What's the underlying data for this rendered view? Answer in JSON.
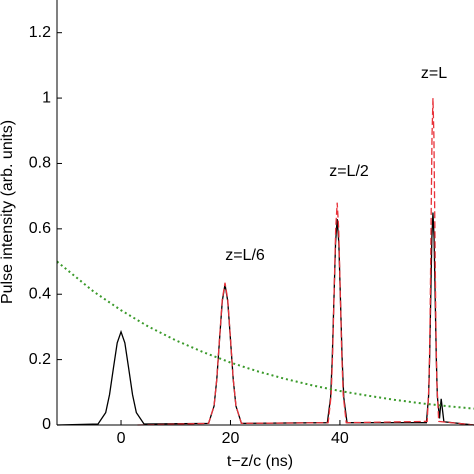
{
  "chart_data": {
    "type": "line",
    "xlabel": "t−z/c (ns)",
    "ylabel": "Pulse intensity (arb. units)",
    "xlim": [
      -11.7,
      64.5
    ],
    "ylim": [
      0,
      1.3
    ],
    "xticks": [
      0,
      20,
      40
    ],
    "yticks": [
      0,
      0.2,
      0.4,
      0.6,
      0.8,
      1,
      1.2
    ],
    "annotations": [
      "z=L/6",
      "z=L/2",
      "z=L"
    ],
    "series": [
      {
        "color": "#000000",
        "linestyle": "solid",
        "x": [
          -11.7,
          -4.2,
          -2.8,
          -2.1,
          -1.4,
          -0.7,
          0,
          0.7,
          1.4,
          2.1,
          2.8,
          4.2,
          16,
          17,
          17.5,
          18,
          18.5,
          19,
          19.5,
          20,
          20.5,
          21,
          22,
          37.7,
          38.3,
          38.6,
          38.9,
          39.2,
          39.5,
          39.8,
          40.1,
          40.4,
          40.7,
          41.3,
          55.8,
          56.2,
          56.4,
          56.6,
          56.8,
          57,
          57.2,
          57.4,
          57.6,
          57.8,
          58.2,
          58.5,
          59,
          64.5
        ],
        "values": [
          0,
          0.003,
          0.038,
          0.093,
          0.173,
          0.251,
          0.285,
          0.251,
          0.173,
          0.093,
          0.038,
          0.003,
          0.005,
          0.058,
          0.14,
          0.261,
          0.379,
          0.43,
          0.379,
          0.261,
          0.14,
          0.058,
          0.005,
          0.007,
          0.085,
          0.205,
          0.382,
          0.556,
          0.63,
          0.556,
          0.382,
          0.205,
          0.085,
          0.007,
          0.007,
          0.088,
          0.211,
          0.395,
          0.573,
          0.65,
          0.573,
          0.395,
          0.211,
          0.088,
          0.02,
          0.08,
          0.01,
          0
        ]
      },
      {
        "color": "#e8323a",
        "linestyle": "dashed",
        "x": [
          3,
          16,
          17,
          17.5,
          18,
          18.5,
          19,
          19.5,
          20,
          20.5,
          21,
          22,
          37.85,
          38.4,
          38.675,
          38.95,
          39.225,
          39.5,
          39.775,
          40.05,
          40.325,
          40.6,
          41.15,
          55.95,
          56.3,
          56.475,
          56.65,
          56.825,
          57,
          57.175,
          57.35,
          57.525,
          57.7,
          58.05,
          64.5
        ],
        "values": [
          0,
          0.005,
          0.059,
          0.141,
          0.264,
          0.384,
          0.435,
          0.384,
          0.264,
          0.141,
          0.059,
          0.005,
          0.007,
          0.092,
          0.221,
          0.413,
          0.6,
          0.68,
          0.6,
          0.413,
          0.221,
          0.092,
          0.007,
          0.011,
          0.135,
          0.325,
          0.607,
          0.882,
          1,
          0.882,
          0.607,
          0.325,
          0.135,
          0.011,
          0
        ]
      },
      {
        "color": "#3a9a2a",
        "linestyle": "dotted",
        "x": [
          -11.7,
          -5,
          0,
          5,
          10,
          15,
          20,
          25,
          30,
          35,
          40,
          45,
          50,
          55,
          60,
          64.5
        ],
        "values": [
          0.5,
          0.408,
          0.351,
          0.301,
          0.259,
          0.223,
          0.191,
          0.164,
          0.141,
          0.121,
          0.104,
          0.09,
          0.077,
          0.066,
          0.057,
          0.05
        ]
      }
    ]
  }
}
